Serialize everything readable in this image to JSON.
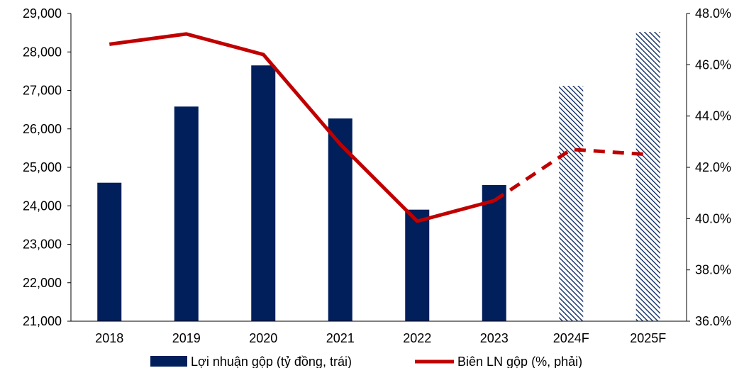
{
  "chart_data": {
    "type": "bar",
    "title": "",
    "xlabel": "",
    "categories": [
      "2018",
      "2019",
      "2020",
      "2021",
      "2022",
      "2023",
      "2024F",
      "2025F"
    ],
    "forecast_categories": [
      "2024F",
      "2025F"
    ],
    "left_axis": {
      "ylim": [
        21000,
        29000
      ],
      "ticks": [
        "21,000",
        "22,000",
        "23,000",
        "24,000",
        "25,000",
        "26,000",
        "27,000",
        "28,000",
        "29,000"
      ]
    },
    "right_axis": {
      "ylim": [
        36.0,
        48.0
      ],
      "ticks": [
        "36.0%",
        "38.0%",
        "40.0%",
        "42.0%",
        "44.0%",
        "46.0%",
        "48.0%"
      ]
    },
    "series": [
      {
        "name": "Lợi nhuận gộp (tỷ đồng, trái)",
        "type": "bar",
        "axis": "left",
        "values": [
          24600,
          26580,
          27650,
          26270,
          23900,
          24540,
          27120,
          28520
        ]
      },
      {
        "name": "Biên LN gộp (%, phải)",
        "type": "line",
        "axis": "right",
        "values": [
          46.8,
          47.2,
          46.4,
          42.9,
          39.9,
          40.7,
          42.7,
          42.5
        ]
      }
    ],
    "colors": {
      "bar": "#001f5b",
      "line": "#c00000",
      "axis": "#000000"
    },
    "grid": false,
    "legend_position": "bottom"
  }
}
